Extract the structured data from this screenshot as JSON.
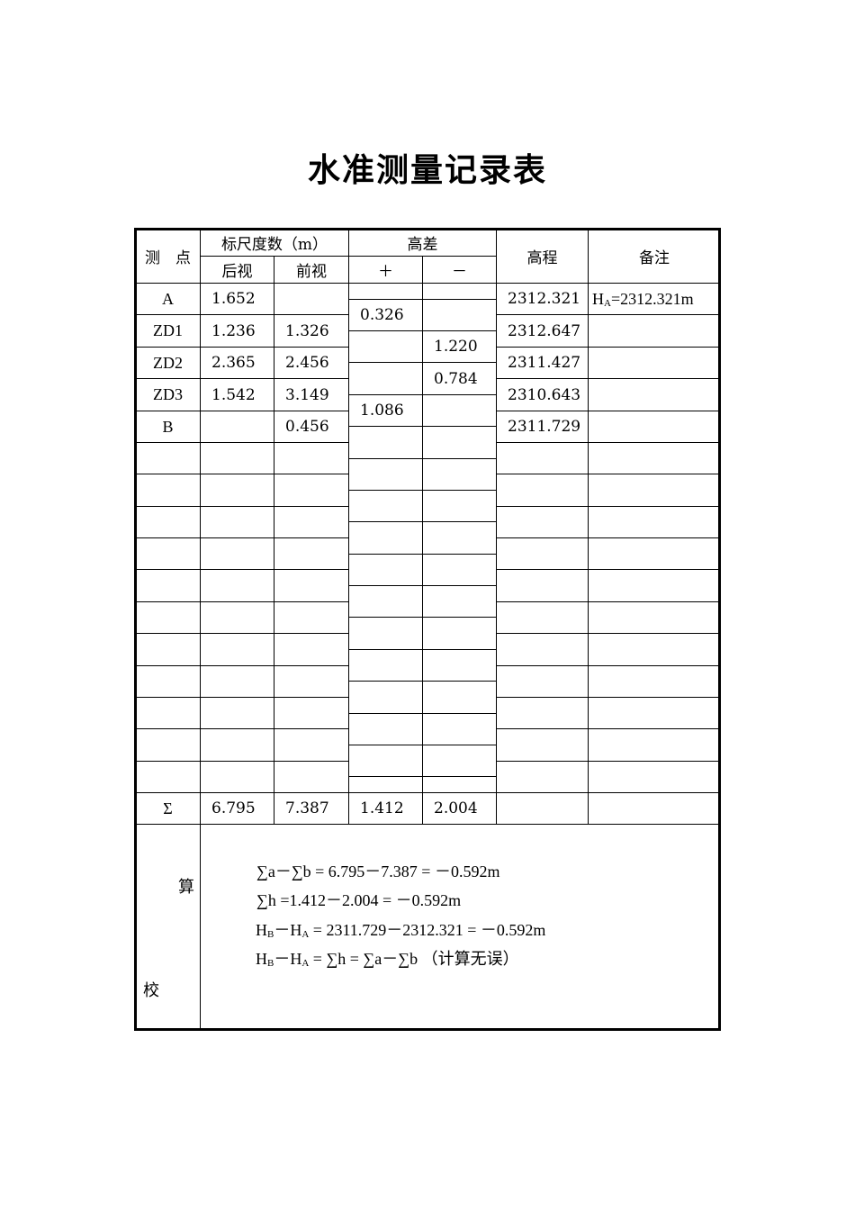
{
  "title": "水准测量记录表",
  "header": {
    "station": "测　点",
    "staff_reading": "标尺度数（m）",
    "backsight": "后视",
    "foresight": "前视",
    "height_diff": "高差",
    "plus": "＋",
    "minus": "－",
    "elevation": "高程",
    "remarks": "备注"
  },
  "rows": [
    {
      "station": "A",
      "backsight": "1.652",
      "foresight": "",
      "elevation": "2312.321",
      "remark_main": "H",
      "remark_sub": "A",
      "remark_rest": "=2312.321m"
    },
    {
      "station": "ZD1",
      "backsight": "1.236",
      "foresight": "1.326",
      "elevation": "2312.647"
    },
    {
      "station": "ZD2",
      "backsight": "2.365",
      "foresight": "2.456",
      "elevation": "2311.427"
    },
    {
      "station": "ZD3",
      "backsight": "1.542",
      "foresight": "3.149",
      "elevation": "2310.643"
    },
    {
      "station": "B",
      "backsight": "",
      "foresight": "0.456",
      "elevation": "2311.729"
    },
    {},
    {},
    {},
    {},
    {},
    {},
    {},
    {},
    {},
    {},
    {}
  ],
  "height_diffs": [
    {
      "plus": "0.326",
      "minus": ""
    },
    {
      "plus": "",
      "minus": "1.220"
    },
    {
      "plus": "",
      "minus": "0.784"
    },
    {
      "plus": "1.086",
      "minus": ""
    }
  ],
  "totals": {
    "label": "Σ",
    "backsight": "6.795",
    "foresight": "7.387",
    "plus": "1.412",
    "minus": "2.004"
  },
  "check": {
    "label_1": "算",
    "label_2": "校",
    "line1": "∑a－∑b = 6.795－7.387 = －0.592m",
    "line2": "∑h =1.412－2.004 = －0.592m",
    "line3_a": "H",
    "line3_b": "B",
    "line3_c": "－H",
    "line3_d": "A",
    "line3_e": " = 2311.729－2312.321 = －0.592m",
    "line4_a": "H",
    "line4_b": "B",
    "line4_c": "－H",
    "line4_d": "A",
    "line4_e": " = ∑h = ∑a－∑b （计算无误）"
  }
}
